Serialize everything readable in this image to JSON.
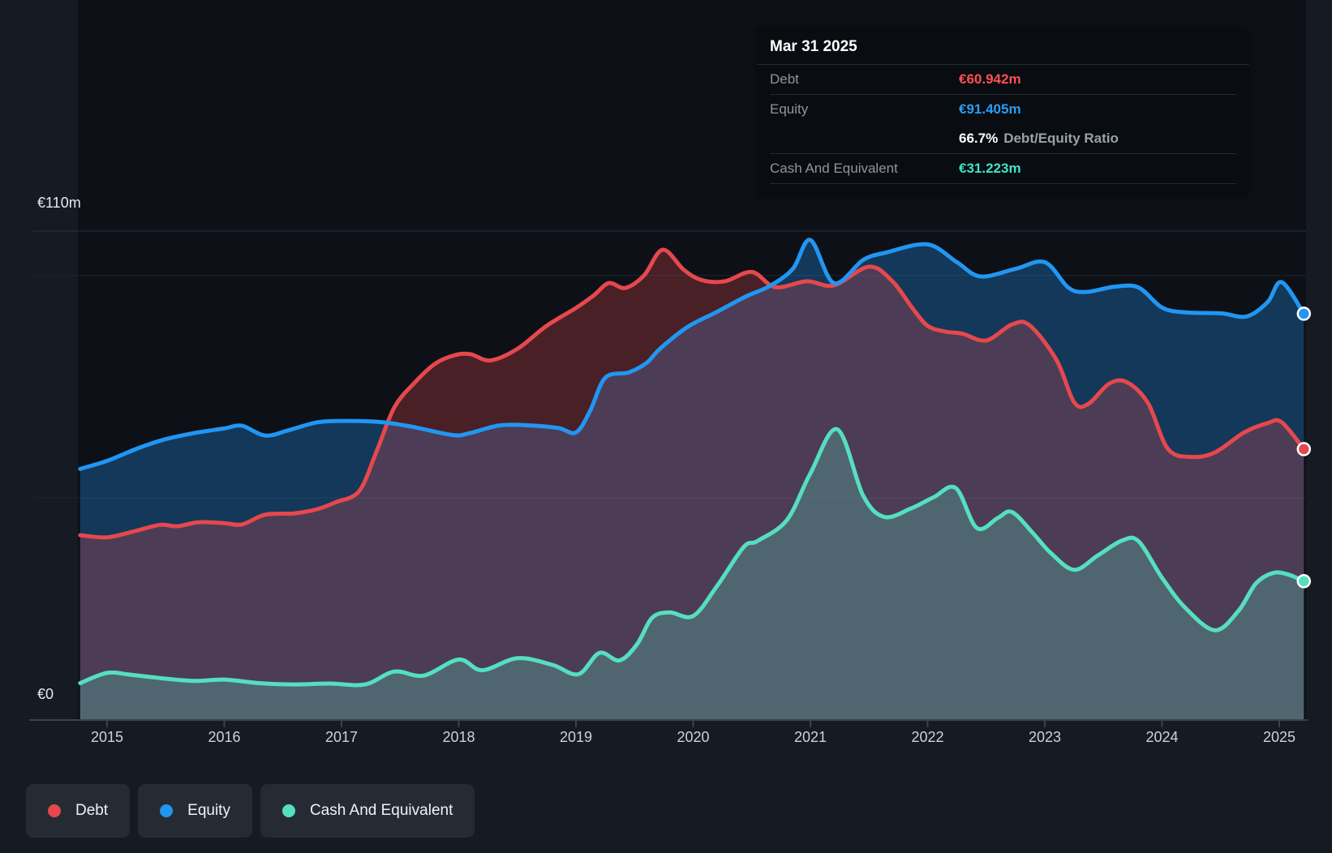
{
  "tooltip": {
    "date": "Mar 31 2025",
    "debt_label": "Debt",
    "debt_value": "€60.942m",
    "equity_label": "Equity",
    "equity_value": "€91.405m",
    "ratio_value": "66.7%",
    "ratio_label": "Debt/Equity Ratio",
    "cash_label": "Cash And Equivalent",
    "cash_value": "€31.223m"
  },
  "y_axis": {
    "top_label": "€110m",
    "zero_label": "€0"
  },
  "x_axis": {
    "years": [
      "2015",
      "2016",
      "2017",
      "2018",
      "2019",
      "2020",
      "2021",
      "2022",
      "2023",
      "2024",
      "2025"
    ]
  },
  "legend": {
    "debt_label": "Debt",
    "equity_label": "Equity",
    "cash_label": "Cash And Equivalent"
  },
  "colors": {
    "debt": "#e5484d",
    "equity": "#2196f3",
    "cash": "#55dfc0",
    "debt_fill_opacity": 0.28,
    "equity_fill_opacity": 0.3,
    "cash_fill_opacity": 0.26,
    "plot_bg": "#0d1117",
    "page_bg": "#151a23",
    "grid_top": "#2a303a",
    "grid": "#1e242d",
    "axis": "#3c424b"
  },
  "chart_data": {
    "type": "area",
    "title": "Debt, Equity and Cash history (hover: Mar 31 2025)",
    "unit": "EUR millions",
    "ylim": [
      0,
      110
    ],
    "y_gridline_values": [
      110,
      100,
      50,
      0
    ],
    "x_years": [
      2015,
      2016,
      2017,
      2018,
      2019,
      2020,
      2021,
      2022,
      2023,
      2024,
      2025
    ],
    "legend_position": "bottom-left",
    "series": [
      {
        "name": "Debt",
        "color": "#e5484d",
        "points": [
          [
            2014.77,
            41.6
          ],
          [
            2015.0,
            41.1
          ],
          [
            2015.25,
            42.6
          ],
          [
            2015.45,
            43.9
          ],
          [
            2015.6,
            43.6
          ],
          [
            2015.78,
            44.5
          ],
          [
            2016.0,
            44.3
          ],
          [
            2016.15,
            44.0
          ],
          [
            2016.35,
            46.2
          ],
          [
            2016.6,
            46.5
          ],
          [
            2016.8,
            47.5
          ],
          [
            2016.95,
            49.0
          ],
          [
            2017.15,
            51.5
          ],
          [
            2017.3,
            60.5
          ],
          [
            2017.45,
            70.3
          ],
          [
            2017.62,
            75.8
          ],
          [
            2017.8,
            80.2
          ],
          [
            2017.97,
            82.1
          ],
          [
            2018.1,
            82.3
          ],
          [
            2018.27,
            80.9
          ],
          [
            2018.5,
            83.5
          ],
          [
            2018.75,
            88.7
          ],
          [
            2019.0,
            92.7
          ],
          [
            2019.15,
            95.5
          ],
          [
            2019.28,
            98.3
          ],
          [
            2019.42,
            97.2
          ],
          [
            2019.58,
            100.0
          ],
          [
            2019.74,
            105.8
          ],
          [
            2019.92,
            101.3
          ],
          [
            2020.07,
            99.0
          ],
          [
            2020.27,
            98.7
          ],
          [
            2020.5,
            100.8
          ],
          [
            2020.7,
            97.4
          ],
          [
            2020.97,
            98.7
          ],
          [
            2021.2,
            97.8
          ],
          [
            2021.5,
            102.0
          ],
          [
            2021.7,
            98.7
          ],
          [
            2021.87,
            92.7
          ],
          [
            2022.0,
            88.7
          ],
          [
            2022.15,
            87.4
          ],
          [
            2022.3,
            86.9
          ],
          [
            2022.5,
            85.4
          ],
          [
            2022.72,
            89.0
          ],
          [
            2022.87,
            88.8
          ],
          [
            2023.1,
            81.0
          ],
          [
            2023.25,
            71.5
          ],
          [
            2023.37,
            71.1
          ],
          [
            2023.55,
            75.7
          ],
          [
            2023.7,
            76.0
          ],
          [
            2023.88,
            71.3
          ],
          [
            2024.05,
            61.0
          ],
          [
            2024.25,
            59.2
          ],
          [
            2024.45,
            60.2
          ],
          [
            2024.7,
            64.7
          ],
          [
            2024.9,
            66.8
          ],
          [
            2025.02,
            67.0
          ],
          [
            2025.21,
            60.942
          ]
        ]
      },
      {
        "name": "Equity",
        "color": "#2196f3",
        "points": [
          [
            2014.77,
            56.5
          ],
          [
            2015.0,
            58.3
          ],
          [
            2015.25,
            61.0
          ],
          [
            2015.5,
            63.2
          ],
          [
            2015.75,
            64.6
          ],
          [
            2016.0,
            65.6
          ],
          [
            2016.15,
            66.2
          ],
          [
            2016.35,
            64.0
          ],
          [
            2016.55,
            65.2
          ],
          [
            2016.8,
            67.0
          ],
          [
            2017.05,
            67.3
          ],
          [
            2017.35,
            67.0
          ],
          [
            2017.6,
            66.0
          ],
          [
            2017.95,
            64.1
          ],
          [
            2018.1,
            64.6
          ],
          [
            2018.35,
            66.3
          ],
          [
            2018.6,
            66.3
          ],
          [
            2018.85,
            65.7
          ],
          [
            2019.0,
            64.7
          ],
          [
            2019.12,
            69.5
          ],
          [
            2019.25,
            77.0
          ],
          [
            2019.45,
            78.2
          ],
          [
            2019.6,
            80.3
          ],
          [
            2019.72,
            83.6
          ],
          [
            2019.95,
            88.4
          ],
          [
            2020.2,
            91.8
          ],
          [
            2020.45,
            95.3
          ],
          [
            2020.65,
            97.6
          ],
          [
            2020.85,
            101.5
          ],
          [
            2021.0,
            108.0
          ],
          [
            2021.2,
            98.3
          ],
          [
            2021.45,
            103.5
          ],
          [
            2021.65,
            105.2
          ],
          [
            2022.0,
            107.0
          ],
          [
            2022.25,
            103.0
          ],
          [
            2022.45,
            99.8
          ],
          [
            2022.75,
            101.5
          ],
          [
            2023.0,
            103.0
          ],
          [
            2023.2,
            97.3
          ],
          [
            2023.35,
            96.3
          ],
          [
            2023.6,
            97.5
          ],
          [
            2023.8,
            97.3
          ],
          [
            2024.0,
            92.8
          ],
          [
            2024.2,
            91.7
          ],
          [
            2024.5,
            91.5
          ],
          [
            2024.72,
            90.8
          ],
          [
            2024.9,
            94.0
          ],
          [
            2025.02,
            98.5
          ],
          [
            2025.21,
            91.405
          ]
        ]
      },
      {
        "name": "Cash And Equivalent",
        "color": "#55dfc0",
        "points": [
          [
            2014.77,
            8.3
          ],
          [
            2015.0,
            10.6
          ],
          [
            2015.2,
            10.2
          ],
          [
            2015.5,
            9.3
          ],
          [
            2015.75,
            8.8
          ],
          [
            2016.0,
            9.1
          ],
          [
            2016.3,
            8.3
          ],
          [
            2016.6,
            8.0
          ],
          [
            2016.9,
            8.2
          ],
          [
            2017.2,
            8.0
          ],
          [
            2017.45,
            10.9
          ],
          [
            2017.7,
            10.0
          ],
          [
            2018.0,
            13.6
          ],
          [
            2018.2,
            11.2
          ],
          [
            2018.5,
            13.9
          ],
          [
            2018.8,
            12.4
          ],
          [
            2019.02,
            10.3
          ],
          [
            2019.2,
            15.1
          ],
          [
            2019.37,
            13.4
          ],
          [
            2019.52,
            17.0
          ],
          [
            2019.65,
            23.0
          ],
          [
            2019.8,
            24.2
          ],
          [
            2020.0,
            23.4
          ],
          [
            2020.2,
            30.0
          ],
          [
            2020.43,
            38.9
          ],
          [
            2020.55,
            40.3
          ],
          [
            2020.8,
            45.0
          ],
          [
            2021.0,
            55.5
          ],
          [
            2021.23,
            65.4
          ],
          [
            2021.45,
            50.5
          ],
          [
            2021.63,
            45.7
          ],
          [
            2021.85,
            47.5
          ],
          [
            2022.05,
            50.1
          ],
          [
            2022.24,
            52.2
          ],
          [
            2022.42,
            43.2
          ],
          [
            2022.6,
            45.5
          ],
          [
            2022.72,
            46.8
          ],
          [
            2022.9,
            42.0
          ],
          [
            2023.05,
            37.6
          ],
          [
            2023.25,
            33.8
          ],
          [
            2023.45,
            37.0
          ],
          [
            2023.66,
            40.4
          ],
          [
            2023.8,
            40.2
          ],
          [
            2024.0,
            32.0
          ],
          [
            2024.2,
            25.2
          ],
          [
            2024.45,
            20.2
          ],
          [
            2024.65,
            24.5
          ],
          [
            2024.8,
            30.7
          ],
          [
            2024.95,
            33.1
          ],
          [
            2025.08,
            32.7
          ],
          [
            2025.21,
            31.223
          ]
        ]
      }
    ],
    "end_values": {
      "Debt": 60.942,
      "Equity": 91.405,
      "Cash And Equivalent": 31.223
    },
    "end_date": "Mar 31 2025"
  }
}
